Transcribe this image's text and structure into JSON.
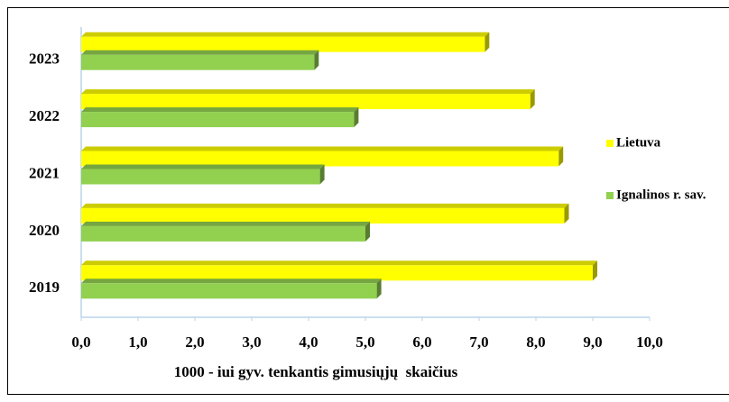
{
  "chart_data": {
    "type": "bar",
    "orientation": "horizontal",
    "categories": [
      "2019",
      "2020",
      "2021",
      "2022",
      "2023"
    ],
    "series": [
      {
        "name": "Lietuva",
        "color": "#ffff00",
        "values": [
          9.0,
          8.5,
          8.4,
          7.9,
          7.1
        ]
      },
      {
        "name": "Ignalinos r. sav.",
        "color": "#92d050",
        "values": [
          5.2,
          5.0,
          4.2,
          4.8,
          4.1
        ]
      }
    ],
    "xlim": [
      0,
      10
    ],
    "xticks": [
      {
        "value": 0,
        "label": "0,0"
      },
      {
        "value": 1,
        "label": "1,0"
      },
      {
        "value": 2,
        "label": "2,0"
      },
      {
        "value": 3,
        "label": "3,0"
      },
      {
        "value": 4,
        "label": "4,0"
      },
      {
        "value": 5,
        "label": "5,0"
      },
      {
        "value": 6,
        "label": "6,0"
      },
      {
        "value": 7,
        "label": "7,0"
      },
      {
        "value": 8,
        "label": "8,0"
      },
      {
        "value": 9,
        "label": "9,0"
      },
      {
        "value": 10,
        "label": "10,0"
      }
    ],
    "x_label": "1000 - iui gyv. tenkantis gimusiųjų  skaičius",
    "legend": "right"
  }
}
